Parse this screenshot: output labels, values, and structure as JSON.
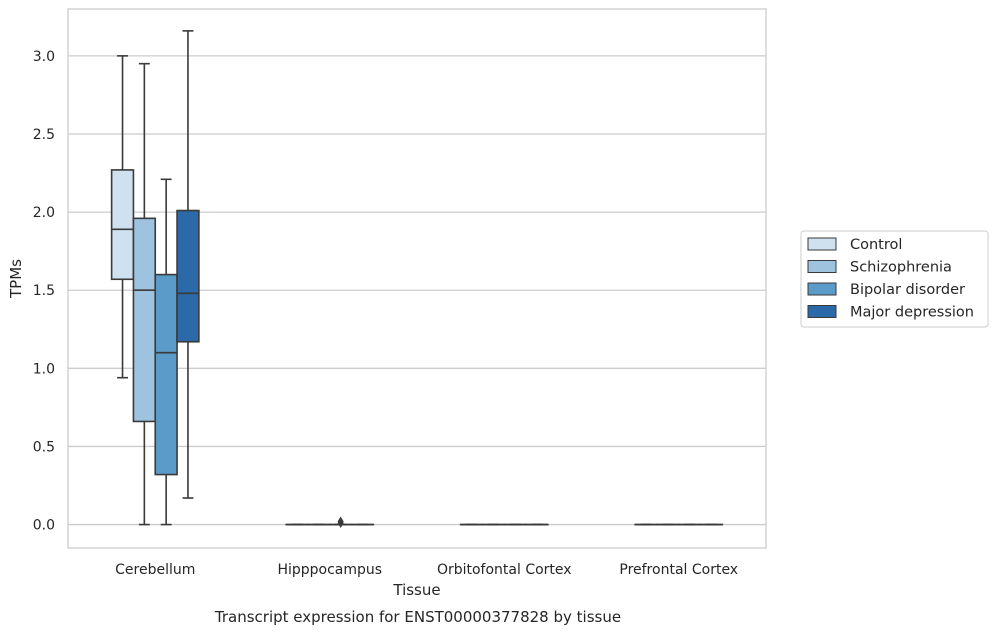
{
  "chart_data": {
    "type": "box",
    "categories": [
      "Cerebellum",
      "Hipppocampus",
      "Orbitofontal Cortex",
      "Prefrontal Cortex"
    ],
    "xlabel": "Tissue",
    "ylabel": "TPMs",
    "caption": "Transcript expression for ENST00000377828 by tissue",
    "ylim": [
      -0.15,
      3.3
    ],
    "yticks": [
      0.0,
      0.5,
      1.0,
      1.5,
      2.0,
      2.5,
      3.0
    ],
    "ytick_labels": [
      "0.0",
      "0.5",
      "1.0",
      "1.5",
      "2.0",
      "2.5",
      "3.0"
    ],
    "grid": "horizontal",
    "legend_position": "right",
    "series": [
      {
        "name": "Control",
        "color": "#cfe0ef",
        "boxes": [
          {
            "whislo": 0.94,
            "q1": 1.57,
            "med": 1.89,
            "q3": 2.27,
            "whishi": 3.0,
            "fliers": []
          },
          {
            "whislo": 0.0,
            "q1": 0.0,
            "med": 0.0,
            "q3": 0.0,
            "whishi": 0.0,
            "fliers": []
          },
          {
            "whislo": 0.0,
            "q1": 0.0,
            "med": 0.0,
            "q3": 0.0,
            "whishi": 0.0,
            "fliers": []
          },
          {
            "whislo": 0.0,
            "q1": 0.0,
            "med": 0.0,
            "q3": 0.0,
            "whishi": 0.0,
            "fliers": []
          }
        ]
      },
      {
        "name": "Schizophrenia",
        "color": "#9dc3de",
        "boxes": [
          {
            "whislo": 0.0,
            "q1": 0.66,
            "med": 1.5,
            "q3": 1.96,
            "whishi": 2.95,
            "fliers": []
          },
          {
            "whislo": 0.0,
            "q1": 0.0,
            "med": 0.0,
            "q3": 0.0,
            "whishi": 0.0,
            "fliers": []
          },
          {
            "whislo": 0.0,
            "q1": 0.0,
            "med": 0.0,
            "q3": 0.0,
            "whishi": 0.0,
            "fliers": []
          },
          {
            "whislo": 0.0,
            "q1": 0.0,
            "med": 0.0,
            "q3": 0.0,
            "whishi": 0.0,
            "fliers": []
          }
        ]
      },
      {
        "name": "Bipolar disorder",
        "color": "#5b9bc9",
        "boxes": [
          {
            "whislo": 0.0,
            "q1": 0.32,
            "med": 1.1,
            "q3": 1.6,
            "whishi": 2.21,
            "fliers": []
          },
          {
            "whislo": 0.0,
            "q1": 0.0,
            "med": 0.0,
            "q3": 0.0,
            "whishi": 0.0,
            "fliers": [
              0.01,
              0.02
            ]
          },
          {
            "whislo": 0.0,
            "q1": 0.0,
            "med": 0.0,
            "q3": 0.0,
            "whishi": 0.0,
            "fliers": []
          },
          {
            "whislo": 0.0,
            "q1": 0.0,
            "med": 0.0,
            "q3": 0.0,
            "whishi": 0.0,
            "fliers": []
          }
        ]
      },
      {
        "name": "Major depression",
        "color": "#2b69a8",
        "boxes": [
          {
            "whislo": 0.17,
            "q1": 1.17,
            "med": 1.48,
            "q3": 2.01,
            "whishi": 3.16,
            "fliers": []
          },
          {
            "whislo": 0.0,
            "q1": 0.0,
            "med": 0.0,
            "q3": 0.0,
            "whishi": 0.0,
            "fliers": []
          },
          {
            "whislo": 0.0,
            "q1": 0.0,
            "med": 0.0,
            "q3": 0.0,
            "whishi": 0.0,
            "fliers": []
          },
          {
            "whislo": 0.0,
            "q1": 0.0,
            "med": 0.0,
            "q3": 0.0,
            "whishi": 0.0,
            "fliers": []
          }
        ]
      }
    ]
  }
}
